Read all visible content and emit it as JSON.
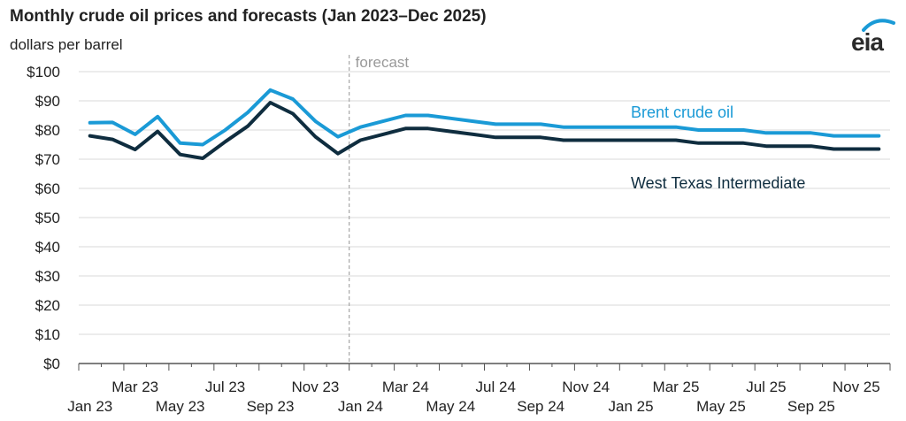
{
  "chart_data": {
    "type": "line",
    "title": "Monthly crude oil prices and forecasts (Jan 2023–Dec 2025)",
    "ylabel": "dollars per barrel",
    "ylim": [
      0,
      100
    ],
    "yticks": [
      "$0",
      "$10",
      "$20",
      "$30",
      "$40",
      "$50",
      "$60",
      "$70",
      "$80",
      "$90",
      "$100"
    ],
    "x": [
      "Jan 23",
      "Feb 23",
      "Mar 23",
      "Apr 23",
      "May 23",
      "Jun 23",
      "Jul 23",
      "Aug 23",
      "Sep 23",
      "Oct 23",
      "Nov 23",
      "Dec 23",
      "Jan 24",
      "Feb 24",
      "Mar 24",
      "Apr 24",
      "May 24",
      "Jun 24",
      "Jul 24",
      "Aug 24",
      "Sep 24",
      "Oct 24",
      "Nov 24",
      "Dec 24",
      "Jan 25",
      "Feb 25",
      "Mar 25",
      "Apr 25",
      "May 25",
      "Jun 25",
      "Jul 25",
      "Aug 25",
      "Sep 25",
      "Oct 25",
      "Nov 25",
      "Dec 25"
    ],
    "xtick_labels_upper": [
      "Mar 23",
      "Jul 23",
      "Nov 23",
      "Mar 24",
      "Jul 24",
      "Nov 24",
      "Mar 25",
      "Jul 25",
      "Nov 25"
    ],
    "xtick_labels_lower": [
      "Jan 23",
      "May 23",
      "Sep 23",
      "Jan 24",
      "May 24",
      "Sep 24",
      "Jan 25",
      "May 25",
      "Sep 25"
    ],
    "forecast_start": "Jan 24",
    "forecast_label": "forecast",
    "series": [
      {
        "name": "Brent crude oil",
        "color": "#1a9ad6",
        "values": [
          82.5,
          82.6,
          78.5,
          84.6,
          75.5,
          75,
          80,
          86,
          93.7,
          90.6,
          83,
          77.7,
          81,
          83,
          85,
          85,
          84,
          83,
          82,
          82,
          82,
          81,
          81,
          81,
          81,
          81,
          81,
          80,
          80,
          80,
          79,
          79,
          79,
          78,
          78,
          78
        ]
      },
      {
        "name": "West Texas Intermediate",
        "color": "#0f2d3f",
        "values": [
          78,
          76.8,
          73.3,
          79.5,
          71.6,
          70.3,
          76,
          81.3,
          89.4,
          85.6,
          77.7,
          71.9,
          76.5,
          78.5,
          80.5,
          80.5,
          79.5,
          78.5,
          77.5,
          77.5,
          77.5,
          76.5,
          76.5,
          76.5,
          76.5,
          76.5,
          76.5,
          75.5,
          75.5,
          75.5,
          74.5,
          74.5,
          74.5,
          73.5,
          73.5,
          73.5
        ]
      }
    ],
    "legend": "inline labels near series end"
  },
  "logo": "eia"
}
